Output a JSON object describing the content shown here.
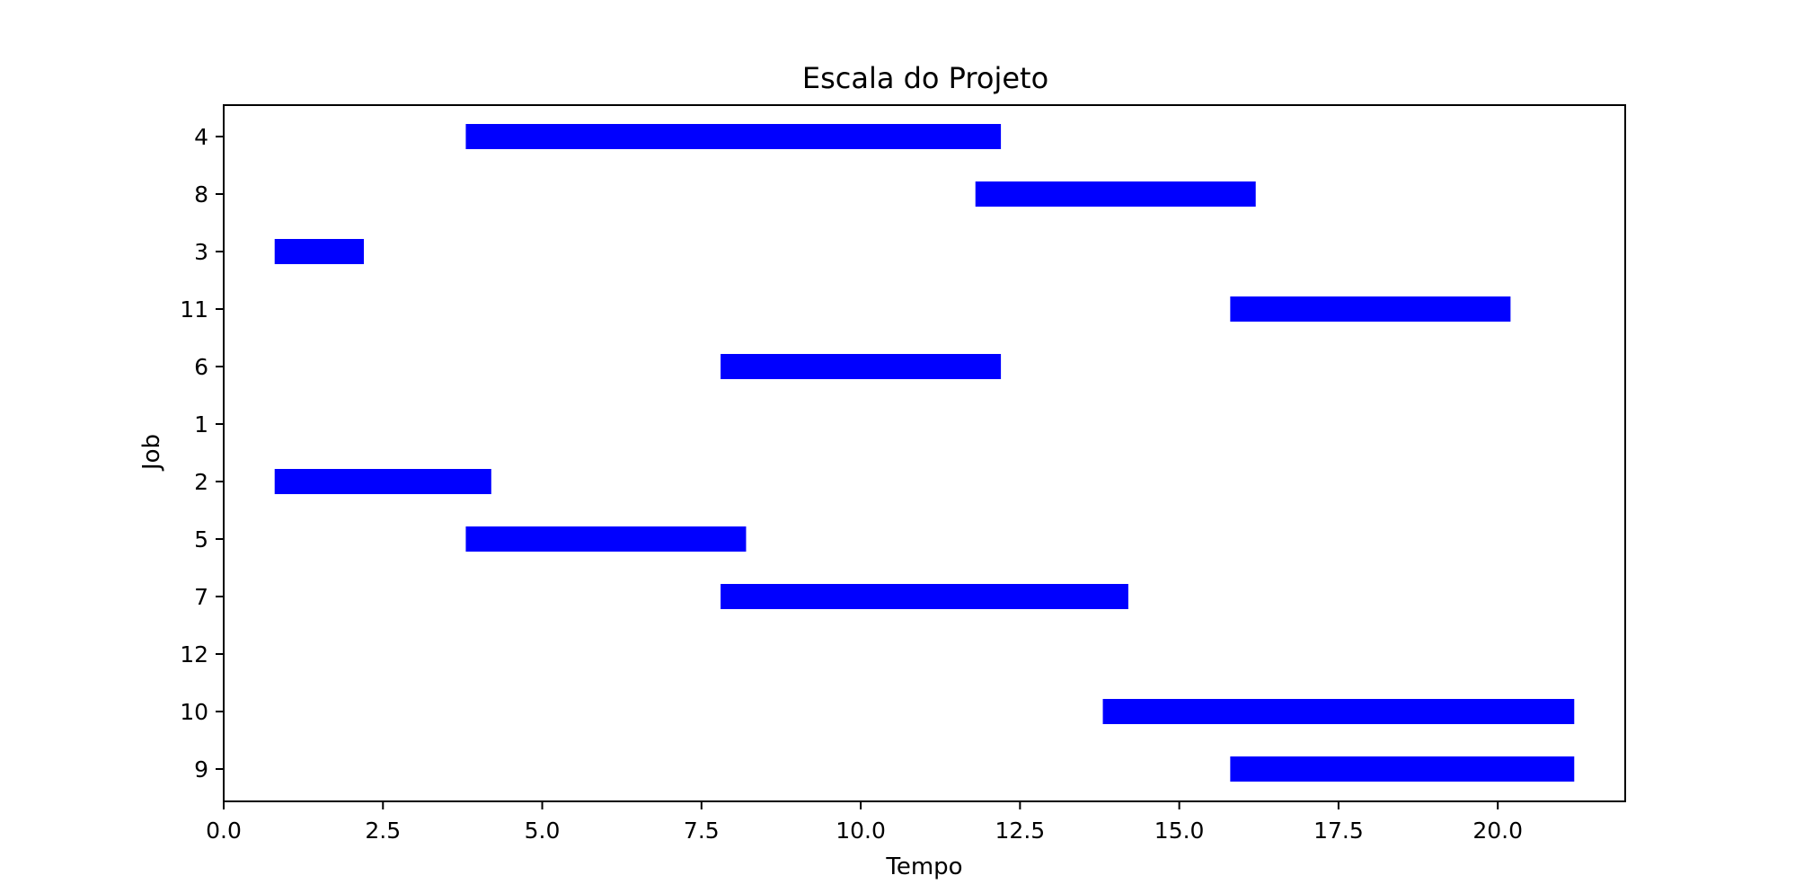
{
  "chart_data": {
    "type": "gantt",
    "title": "Escala do Projeto",
    "xlabel": "Tempo",
    "ylabel": "Job",
    "xlim": [
      0,
      22
    ],
    "xticks": [
      "0.0",
      "2.5",
      "5.0",
      "7.5",
      "10.0",
      "12.5",
      "15.0",
      "17.5",
      "20.0"
    ],
    "categories": [
      "4",
      "8",
      "3",
      "11",
      "6",
      "1",
      "2",
      "5",
      "7",
      "12",
      "10",
      "9"
    ],
    "bar_color": "#0000ff",
    "grid": false,
    "series": [
      {
        "values": [
          {
            "job": "4",
            "start": 3.8,
            "end": 12.2
          },
          {
            "job": "8",
            "start": 11.8,
            "end": 16.2
          },
          {
            "job": "3",
            "start": 0.8,
            "end": 2.2
          },
          {
            "job": "11",
            "start": 15.8,
            "end": 20.2
          },
          {
            "job": "6",
            "start": 7.8,
            "end": 12.2
          },
          {
            "job": "1",
            "start": null,
            "end": null
          },
          {
            "job": "2",
            "start": 0.8,
            "end": 4.2
          },
          {
            "job": "5",
            "start": 3.8,
            "end": 8.2
          },
          {
            "job": "7",
            "start": 7.8,
            "end": 14.2
          },
          {
            "job": "12",
            "start": null,
            "end": null
          },
          {
            "job": "10",
            "start": 13.8,
            "end": 21.2
          },
          {
            "job": "9",
            "start": 15.8,
            "end": 21.2
          }
        ]
      }
    ]
  }
}
